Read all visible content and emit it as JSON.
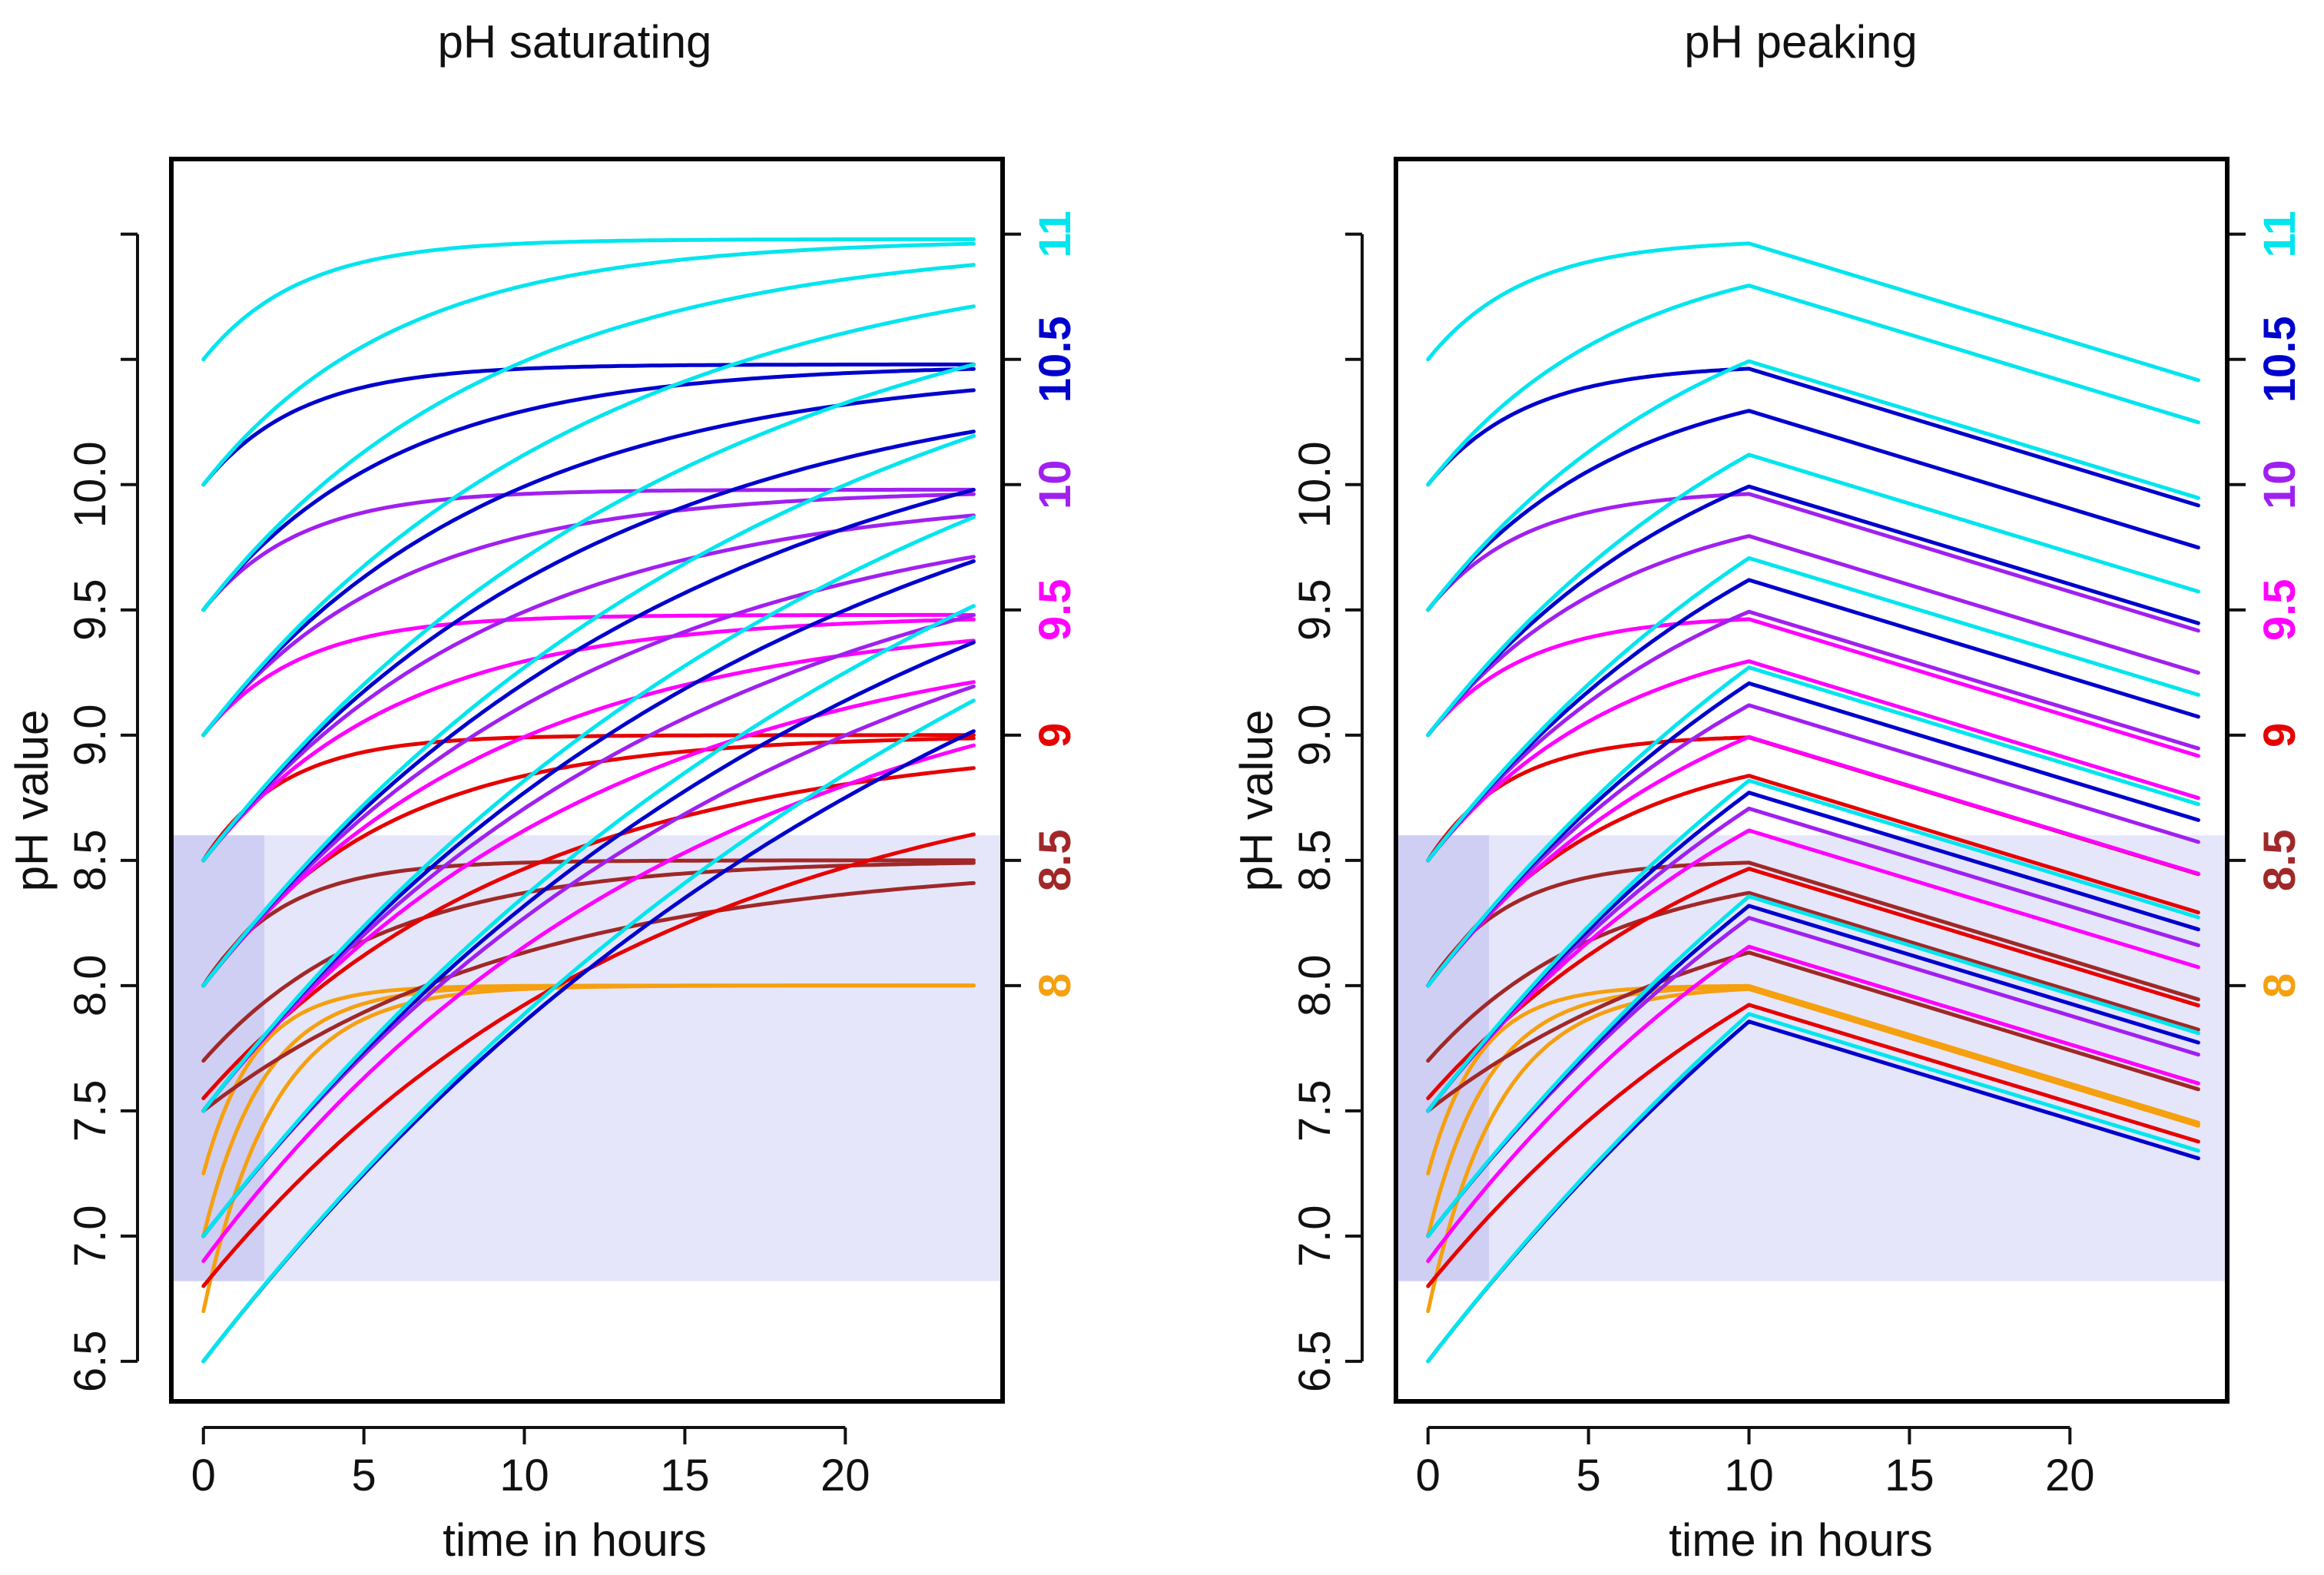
{
  "chart_data": [
    {
      "type": "line",
      "title": "pH saturating",
      "xlabel": "time in hours",
      "ylabel": "pH value",
      "xlim": [
        -1,
        24.9
      ],
      "ylim": [
        6.34,
        11.3
      ],
      "x_ticks": [
        0,
        5,
        10,
        15,
        20
      ],
      "x_tick_labels": [
        "0",
        "5",
        "10",
        "15",
        "20"
      ],
      "y_ticks": [
        6.5,
        7.0,
        7.5,
        8.0,
        8.5,
        9.0,
        9.5,
        10.0
      ],
      "y_tick_labels": [
        "6.5",
        "7.0",
        "7.5",
        "8.0",
        "8.5",
        "9.0",
        "9.5",
        "10.0"
      ],
      "y_extra_ticks": [
        10.5,
        11.0
      ],
      "right_axis": {
        "ticks": [
          8,
          8.5,
          9,
          9.5,
          10,
          10.5,
          11
        ],
        "labels": [
          "8",
          "8.5",
          "9",
          "9.5",
          "10",
          "10.5",
          "11"
        ],
        "colors": [
          "#f5a00f",
          "#a02828",
          "#e60000",
          "#ff00ff",
          "#a020f0",
          "#0000cd",
          "#00e5ee"
        ]
      },
      "shaded_regions": [
        {
          "x": [
            -1,
            24.9
          ],
          "y": [
            6.82,
            8.6
          ],
          "color": "#e6e6fa"
        },
        {
          "x": [
            -1,
            1.9
          ],
          "y": [
            6.82,
            8.6
          ],
          "color": "#cfcff3"
        }
      ],
      "x_range": [
        0,
        24
      ],
      "series_formula": "start + (target - start) * (1 - exp(-t / tau))",
      "series": [
        {
          "name": "target 8",
          "color": "#f5a00f",
          "target": 8.0,
          "starts": [
            7.25,
            7.0,
            6.7
          ],
          "taus": [
            1.6,
            1.9,
            2.2
          ]
        },
        {
          "name": "target 8.5",
          "color": "#a02828",
          "starts": [
            8.0,
            7.7,
            7.5
          ],
          "target": 8.5,
          "taus": [
            2.5,
            5.5,
            10.0
          ]
        },
        {
          "name": "target 9",
          "color": "#e60000",
          "starts": [
            8.5,
            8.0,
            7.55,
            6.8
          ],
          "target": 9.0,
          "taus": [
            2.5,
            5.5,
            10.0,
            14.0
          ]
        },
        {
          "name": "target 9.5",
          "color": "#ff00ff",
          "starts": [
            9.0,
            8.5,
            8.0,
            7.5,
            6.9
          ],
          "target": 9.48,
          "taus": [
            3.0,
            6.0,
            9.0,
            12.0,
            15.0
          ]
        },
        {
          "name": "target 10",
          "color": "#a020f0",
          "starts": [
            9.5,
            9.0,
            8.5,
            8.0,
            7.5,
            7.0
          ],
          "target": 9.98,
          "taus": [
            3.0,
            6.0,
            9.0,
            12.0,
            15.0,
            18.0
          ]
        },
        {
          "name": "target 10.5",
          "color": "#0000cd",
          "starts": [
            10.0,
            9.5,
            9.0,
            8.5,
            8.0,
            7.5,
            7.0,
            6.5
          ],
          "target": 10.48,
          "taus": [
            3.0,
            6.0,
            9.0,
            12.0,
            15.0,
            18.0,
            21.0,
            24.0
          ]
        },
        {
          "name": "target 11",
          "color": "#00e5ee",
          "starts": [
            10.5,
            10.0,
            9.5,
            9.0,
            8.5,
            8.0,
            7.5,
            7.0,
            6.5
          ],
          "target": 10.98,
          "taus": [
            3.0,
            6.0,
            9.0,
            12.0,
            15.0,
            18.0,
            21.0,
            24.0,
            27.0
          ]
        }
      ]
    },
    {
      "type": "line",
      "title": "pH peaking",
      "xlabel": "time in hours",
      "ylabel": "pH value",
      "xlim": [
        -1,
        24.9
      ],
      "ylim": [
        6.34,
        11.3
      ],
      "x_ticks": [
        0,
        5,
        10,
        15,
        20
      ],
      "x_tick_labels": [
        "0",
        "5",
        "10",
        "15",
        "20"
      ],
      "y_ticks": [
        6.5,
        7.0,
        7.5,
        8.0,
        8.5,
        9.0,
        9.5,
        10.0
      ],
      "y_tick_labels": [
        "6.5",
        "7.0",
        "7.5",
        "8.0",
        "8.5",
        "9.0",
        "9.5",
        "10.0"
      ],
      "y_extra_ticks": [
        10.5,
        11.0
      ],
      "right_axis": {
        "ticks": [
          8,
          8.5,
          9,
          9.5,
          10,
          10.5,
          11
        ],
        "labels": [
          "8",
          "8.5",
          "9",
          "9.5",
          "10",
          "10.5",
          "11"
        ],
        "colors": [
          "#f5a00f",
          "#a02828",
          "#e60000",
          "#ff00ff",
          "#a020f0",
          "#0000cd",
          "#00e5ee"
        ]
      },
      "shaded_regions": [
        {
          "x": [
            -1,
            24.9
          ],
          "y": [
            6.82,
            8.6
          ],
          "color": "#e6e6fa"
        },
        {
          "x": [
            -1,
            1.9
          ],
          "y": [
            6.82,
            8.6
          ],
          "color": "#cfcff3"
        }
      ],
      "x_range": [
        0,
        24
      ],
      "peak_time": 10,
      "decline_rate_per_hour": 0.039,
      "series_formula": "rise as saturating curve until peak_time, then linear decline",
      "series": [
        {
          "name": "target 8",
          "color": "#f5a00f",
          "target": 8.0,
          "starts": [
            7.25,
            7.0,
            6.7
          ],
          "taus": [
            1.6,
            1.9,
            2.2
          ]
        },
        {
          "name": "target 8.5",
          "color": "#a02828",
          "starts": [
            8.0,
            7.7,
            7.5
          ],
          "target": 8.5,
          "taus": [
            2.5,
            5.5,
            10.0
          ]
        },
        {
          "name": "target 9",
          "color": "#e60000",
          "starts": [
            8.5,
            8.0,
            7.55,
            6.8
          ],
          "target": 9.0,
          "taus": [
            2.5,
            5.5,
            10.0,
            14.0
          ]
        },
        {
          "name": "target 9.5",
          "color": "#ff00ff",
          "starts": [
            9.0,
            8.5,
            8.0,
            7.5,
            6.9
          ],
          "target": 9.48,
          "taus": [
            3.0,
            6.0,
            9.0,
            12.0,
            15.0
          ]
        },
        {
          "name": "target 10",
          "color": "#a020f0",
          "starts": [
            9.5,
            9.0,
            8.5,
            8.0,
            7.5,
            7.0
          ],
          "target": 9.98,
          "taus": [
            3.0,
            6.0,
            9.0,
            12.0,
            15.0,
            18.0
          ]
        },
        {
          "name": "target 10.5",
          "color": "#0000cd",
          "starts": [
            10.0,
            9.5,
            9.0,
            8.5,
            8.0,
            7.5,
            7.0,
            6.5
          ],
          "target": 10.48,
          "taus": [
            3.0,
            6.0,
            9.0,
            12.0,
            15.0,
            18.0,
            21.0,
            24.0
          ]
        },
        {
          "name": "target 11",
          "color": "#00e5ee",
          "starts": [
            10.5,
            10.0,
            9.5,
            9.0,
            8.5,
            8.0,
            7.5,
            7.0,
            6.5
          ],
          "target": 10.98,
          "taus": [
            3.0,
            6.0,
            9.0,
            12.0,
            15.0,
            18.0,
            21.0,
            24.0,
            27.0
          ]
        }
      ]
    }
  ]
}
